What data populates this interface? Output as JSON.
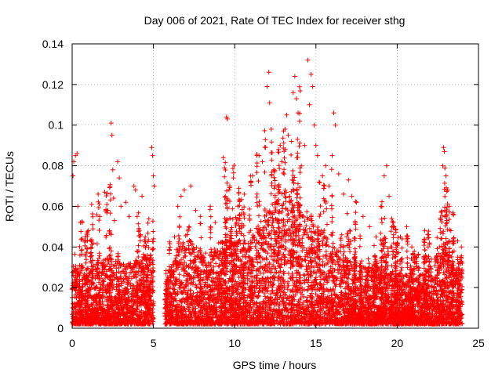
{
  "chart_data": {
    "type": "scatter",
    "title": "Day 006 of 2021, Rate Of TEC Index for receiver sthg",
    "xlabel": "GPS time / hours",
    "ylabel": "ROTI / TECUs",
    "xlim": [
      0,
      25
    ],
    "ylim": [
      0,
      0.14
    ],
    "xticks": [
      "0",
      "5",
      "10",
      "15",
      "20",
      "25"
    ],
    "yticks": [
      "0",
      "0.02",
      "0.04",
      "0.06",
      "0.08",
      "0.1",
      "0.12",
      "0.14"
    ],
    "grid": true,
    "marker": "+",
    "colors": {
      "series": "#ff0000",
      "grid": "#a0a0a0",
      "axes": "#000000"
    },
    "gap": [
      5.0,
      5.7
    ],
    "envelope": {
      "x": [
        0,
        0.3,
        0.6,
        1.0,
        1.5,
        2.0,
        2.4,
        2.8,
        3.2,
        3.6,
        4.0,
        4.4,
        4.8,
        5.0,
        5.7,
        6.2,
        6.6,
        7.0,
        7.5,
        8.0,
        8.5,
        9.0,
        9.5,
        10.0,
        10.5,
        11.0,
        11.5,
        12.0,
        12.5,
        13.0,
        13.5,
        14.0,
        14.5,
        15.0,
        15.5,
        16.0,
        16.5,
        17.0,
        17.5,
        18.0,
        18.5,
        19.0,
        19.5,
        20.0,
        20.5,
        21.0,
        21.5,
        22.0,
        22.5,
        23.0,
        23.5,
        24.0
      ],
      "y": [
        0.03,
        0.028,
        0.025,
        0.025,
        0.03,
        0.032,
        0.035,
        0.033,
        0.03,
        0.03,
        0.032,
        0.033,
        0.035,
        0.033,
        0.02,
        0.03,
        0.04,
        0.045,
        0.04,
        0.035,
        0.035,
        0.04,
        0.042,
        0.042,
        0.04,
        0.042,
        0.05,
        0.055,
        0.06,
        0.065,
        0.065,
        0.06,
        0.055,
        0.05,
        0.045,
        0.04,
        0.035,
        0.032,
        0.03,
        0.028,
        0.028,
        0.03,
        0.028,
        0.025,
        0.025,
        0.022,
        0.025,
        0.028,
        0.035,
        0.04,
        0.03,
        0.025
      ]
    },
    "outliers": [
      [
        0.05,
        0.075
      ],
      [
        0.1,
        0.082
      ],
      [
        0.2,
        0.085
      ],
      [
        0.3,
        0.086
      ],
      [
        0.35,
        0.06
      ],
      [
        0.5,
        0.052
      ],
      [
        0.6,
        0.044
      ],
      [
        0.8,
        0.045
      ],
      [
        1.0,
        0.048
      ],
      [
        1.2,
        0.061
      ],
      [
        1.6,
        0.066
      ],
      [
        1.7,
        0.055
      ],
      [
        2.0,
        0.067
      ],
      [
        2.2,
        0.058
      ],
      [
        2.3,
        0.048
      ],
      [
        2.4,
        0.101
      ],
      [
        2.45,
        0.095
      ],
      [
        2.5,
        0.078
      ],
      [
        2.55,
        0.064
      ],
      [
        2.6,
        0.053
      ],
      [
        2.8,
        0.082
      ],
      [
        2.9,
        0.074
      ],
      [
        3.0,
        0.06
      ],
      [
        3.3,
        0.062
      ],
      [
        3.5,
        0.055
      ],
      [
        3.8,
        0.07
      ],
      [
        3.9,
        0.068
      ],
      [
        4.0,
        0.055
      ],
      [
        4.1,
        0.049
      ],
      [
        4.3,
        0.065
      ],
      [
        4.5,
        0.045
      ],
      [
        4.9,
        0.089
      ],
      [
        4.95,
        0.085
      ],
      [
        5.0,
        0.075
      ],
      [
        5.05,
        0.07
      ],
      [
        6.3,
        0.045
      ],
      [
        6.5,
        0.06
      ],
      [
        6.7,
        0.065
      ],
      [
        6.9,
        0.068
      ],
      [
        7.3,
        0.07
      ],
      [
        7.6,
        0.058
      ],
      [
        7.9,
        0.055
      ],
      [
        8.5,
        0.06
      ],
      [
        8.8,
        0.052
      ],
      [
        9.3,
        0.084
      ],
      [
        9.5,
        0.104
      ],
      [
        9.55,
        0.103
      ],
      [
        9.7,
        0.07
      ],
      [
        10.2,
        0.06
      ],
      [
        10.6,
        0.066
      ],
      [
        11.1,
        0.075
      ],
      [
        11.5,
        0.085
      ],
      [
        11.7,
        0.082
      ],
      [
        11.9,
        0.089
      ],
      [
        12.0,
        0.119
      ],
      [
        12.1,
        0.126
      ],
      [
        12.15,
        0.111
      ],
      [
        12.25,
        0.098
      ],
      [
        12.4,
        0.078
      ],
      [
        12.7,
        0.088
      ],
      [
        12.8,
        0.09
      ],
      [
        12.9,
        0.082
      ],
      [
        13.1,
        0.098
      ],
      [
        13.2,
        0.105
      ],
      [
        13.3,
        0.095
      ],
      [
        13.5,
        0.092
      ],
      [
        13.6,
        0.116
      ],
      [
        13.7,
        0.124
      ],
      [
        13.8,
        0.113
      ],
      [
        13.9,
        0.106
      ],
      [
        14.1,
        0.08
      ],
      [
        14.3,
        0.09
      ],
      [
        14.5,
        0.132
      ],
      [
        14.6,
        0.11
      ],
      [
        14.7,
        0.125
      ],
      [
        14.8,
        0.119
      ],
      [
        14.9,
        0.1
      ],
      [
        15.0,
        0.09
      ],
      [
        15.1,
        0.085
      ],
      [
        15.2,
        0.072
      ],
      [
        15.4,
        0.075
      ],
      [
        15.6,
        0.08
      ],
      [
        15.8,
        0.07
      ],
      [
        16.0,
        0.085
      ],
      [
        16.1,
        0.106
      ],
      [
        16.2,
        0.1
      ],
      [
        16.4,
        0.076
      ],
      [
        16.7,
        0.066
      ],
      [
        17.0,
        0.073
      ],
      [
        17.2,
        0.065
      ],
      [
        17.5,
        0.062
      ],
      [
        17.9,
        0.055
      ],
      [
        18.3,
        0.05
      ],
      [
        18.7,
        0.045
      ],
      [
        19.0,
        0.06
      ],
      [
        19.2,
        0.075
      ],
      [
        19.35,
        0.08
      ],
      [
        19.5,
        0.065
      ],
      [
        19.8,
        0.05
      ],
      [
        20.2,
        0.045
      ],
      [
        20.3,
        0.044
      ],
      [
        20.6,
        0.038
      ],
      [
        20.9,
        0.04
      ],
      [
        21.3,
        0.036
      ],
      [
        21.8,
        0.033
      ],
      [
        22.1,
        0.034
      ],
      [
        22.4,
        0.035
      ],
      [
        22.6,
        0.04
      ],
      [
        22.8,
        0.08
      ],
      [
        22.85,
        0.089
      ],
      [
        22.9,
        0.087
      ],
      [
        23.0,
        0.075
      ],
      [
        23.1,
        0.068
      ],
      [
        23.2,
        0.06
      ],
      [
        23.3,
        0.048
      ],
      [
        23.5,
        0.038
      ],
      [
        23.9,
        0.033
      ],
      [
        24.0,
        0.032
      ]
    ]
  }
}
